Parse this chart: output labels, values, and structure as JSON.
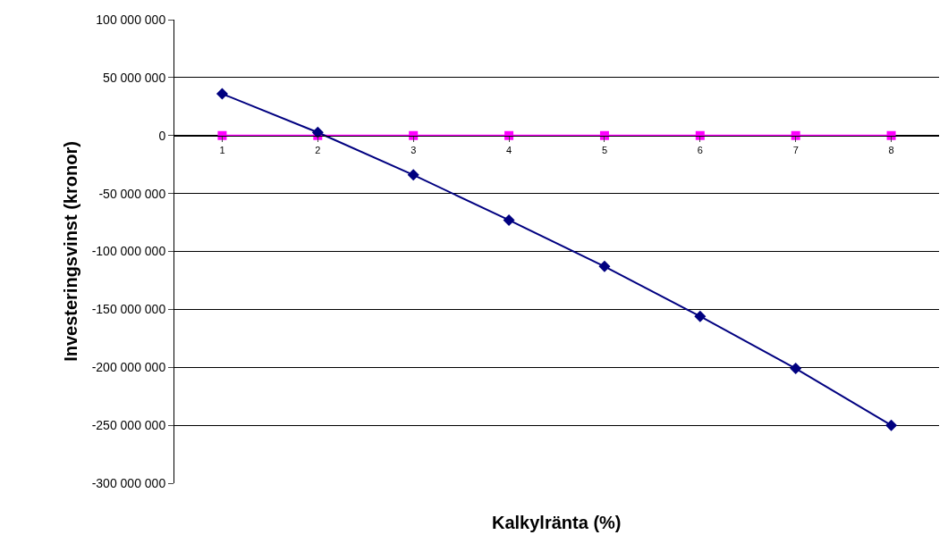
{
  "chart_data": {
    "type": "line",
    "xlabel": "Kalkylränta (%)",
    "ylabel": "Investeringsvinst (kronor)",
    "categories": [
      "1",
      "2",
      "3",
      "4",
      "5",
      "6",
      "7",
      "8"
    ],
    "series": [
      {
        "color": "#000080",
        "marker": "diamond",
        "values": [
          36000000,
          2700000,
          -34000000,
          -73000000,
          -113000000,
          -156000000,
          -201000000,
          -250000000
        ]
      },
      {
        "color": "#ff00ff",
        "marker": "square",
        "values": [
          0,
          0,
          0,
          0,
          0,
          0,
          0,
          0
        ]
      }
    ],
    "ylim": [
      -300000000,
      100000000
    ],
    "yticks": [
      {
        "value": 100000000,
        "label": "100 000 000"
      },
      {
        "value": 50000000,
        "label": "50 000 000"
      },
      {
        "value": 0,
        "label": "0"
      },
      {
        "value": -50000000,
        "label": "-50 000 000"
      },
      {
        "value": -100000000,
        "label": "-100 000 000"
      },
      {
        "value": -150000000,
        "label": "-150 000 000"
      },
      {
        "value": -200000000,
        "label": "-200 000 000"
      },
      {
        "value": -250000000,
        "label": "-250 000 000"
      },
      {
        "value": -300000000,
        "label": "-300 000 000"
      }
    ],
    "grid": "y",
    "legend": false
  }
}
